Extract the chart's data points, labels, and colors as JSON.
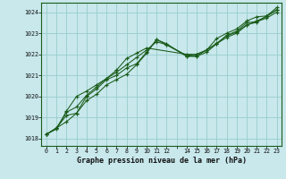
{
  "title": "Graphe pression niveau de la mer (hPa)",
  "bg_color": "#c8e8ec",
  "grid_color": "#99cccc",
  "line_color": "#1a5c1a",
  "x_labels": [
    "0",
    "1",
    "2",
    "3",
    "4",
    "5",
    "6",
    "7",
    "8",
    "9",
    "10",
    "11",
    "12",
    "",
    "14",
    "15",
    "16",
    "17",
    "18",
    "19",
    "20",
    "21",
    "22",
    "23"
  ],
  "ylim": [
    1017.65,
    1024.45
  ],
  "yticks": [
    1018,
    1019,
    1020,
    1021,
    1022,
    1023,
    1024
  ],
  "series": [
    [
      1018.2,
      1018.5,
      1018.8,
      1019.2,
      1020.0,
      1020.35,
      1020.8,
      1021.0,
      1021.35,
      1021.55,
      1022.1,
      1022.7,
      1022.5,
      null,
      1021.9,
      1021.9,
      1022.1,
      1022.5,
      1022.9,
      1023.1,
      1023.5,
      1023.55,
      1023.72,
      1024.0
    ],
    [
      1018.2,
      1018.5,
      1019.25,
      1019.5,
      1020.05,
      1020.45,
      1020.85,
      1021.15,
      1021.5,
      1021.85,
      1022.2,
      1022.6,
      1022.45,
      null,
      1021.95,
      1022.0,
      1022.2,
      1022.75,
      1023.0,
      1023.2,
      1023.58,
      1023.78,
      1023.82,
      1024.22
    ],
    [
      1018.2,
      1018.45,
      1019.3,
      1020.0,
      1020.25,
      1020.55,
      1020.85,
      1021.25,
      1021.8,
      1022.05,
      1022.3,
      null,
      null,
      null,
      1022.0,
      1022.0,
      1022.2,
      1022.52,
      1022.88,
      1023.05,
      1023.4,
      1023.52,
      1023.82,
      1024.12
    ],
    [
      1018.2,
      1018.5,
      1019.1,
      1019.2,
      1019.8,
      1020.1,
      1020.55,
      1020.8,
      1021.05,
      1021.5,
      1022.05,
      1022.7,
      1022.45,
      null,
      1021.92,
      1021.92,
      1022.2,
      1022.5,
      1022.8,
      1023.0,
      1023.38,
      1023.58,
      1023.8,
      1024.1
    ]
  ],
  "figsize": [
    3.2,
    2.0
  ],
  "dpi": 100
}
